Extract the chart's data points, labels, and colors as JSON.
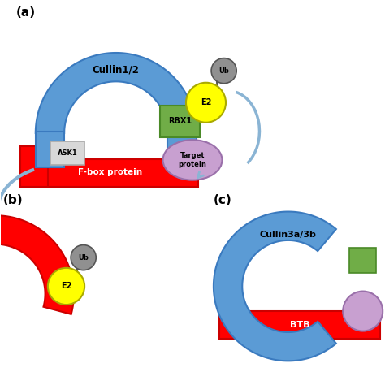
{
  "bg_color": "#ffffff",
  "blue_cullin": "#5b9bd5",
  "red_fbox": "#ff0000",
  "green_rbx": "#70ad47",
  "yellow_e2": "#ffff00",
  "gray_ub": "#909090",
  "purple_target": "#c8a0d0",
  "white_ask": "#d8d8d8",
  "arrow_color": "#8ab4d4",
  "label_a": "(a)",
  "label_b": "(b)",
  "label_c": "(c)",
  "cullin12_text": "Cullin1/2",
  "cullin3_text": "Cullin3a/3b",
  "fbox_text": "F-box protein",
  "btb_text": "BTB",
  "rbx1_text": "RBX1",
  "e2_text": "E2",
  "ub_text": "Ub",
  "ask1_text": "ASK1",
  "target_text": "Target\nprotein"
}
